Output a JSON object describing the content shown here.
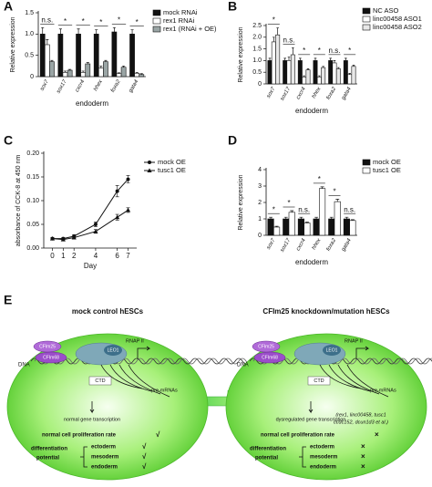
{
  "chart_data": [
    {
      "type": "bar",
      "panel": "A",
      "ylabel": "Relative expression",
      "xlabel": "endoderm",
      "categories": [
        "sox7",
        "sox17",
        "cxcr4",
        "hhex",
        "foxa2",
        "gata4"
      ],
      "series": [
        {
          "name": "mock RNAi",
          "color": "#111111",
          "values": [
            1.0,
            1.0,
            1.0,
            1.0,
            1.05,
            1.0
          ],
          "errors": [
            0.15,
            0.12,
            0.12,
            0.1,
            0.1,
            0.1
          ]
        },
        {
          "name": "rex1 RNAi",
          "color": "#ffffff",
          "values": [
            0.75,
            0.1,
            0.1,
            0.2,
            0.07,
            0.08
          ],
          "errors": [
            0.12,
            0.03,
            0.03,
            0.05,
            0.02,
            0.02
          ]
        },
        {
          "name": "rex1 (RNAi + OE)",
          "color": "#9aa5a5",
          "values": [
            0.35,
            0.15,
            0.3,
            0.35,
            0.22,
            0.05
          ],
          "errors": [
            0.03,
            0.02,
            0.03,
            0.03,
            0.03,
            0.02
          ]
        }
      ],
      "annotations": [
        "n.s.",
        "*",
        "*",
        "*",
        "*",
        "*"
      ],
      "ylim": [
        0,
        1.5
      ],
      "yticks": [
        0,
        0.5,
        {
          "value": 1,
          "label": "1.0"
        },
        1.5
      ]
    },
    {
      "type": "bar",
      "panel": "B",
      "ylabel": "Relative expression",
      "xlabel": "endoderm",
      "categories": [
        "sox7",
        "sox17",
        "cxcr4",
        "hhex",
        "foxa2",
        "gata4"
      ],
      "series": [
        {
          "name": "NC ASO",
          "color": "#111111",
          "values": [
            1.0,
            1.0,
            1.0,
            1.0,
            1.0,
            1.0
          ],
          "errors": [
            0.1,
            0.1,
            0.1,
            0.1,
            0.1,
            0.1
          ]
        },
        {
          "name": "linc00458 ASO1",
          "color": "#ffffff",
          "values": [
            1.8,
            1.0,
            0.3,
            0.3,
            0.9,
            0.4
          ],
          "errors": [
            0.2,
            0.15,
            0.05,
            0.05,
            0.1,
            0.05
          ]
        },
        {
          "name": "linc00458 ASO2",
          "color": "#e8e8e8",
          "values": [
            2.1,
            1.25,
            0.6,
            0.7,
            0.65,
            0.75
          ],
          "errors": [
            0.3,
            0.3,
            0.05,
            0.05,
            0.05,
            0.05
          ]
        }
      ],
      "annotations": [
        "*",
        "n.s.",
        "*",
        "*",
        "n.s.",
        "*"
      ],
      "ylim": [
        0,
        2.5
      ],
      "yticks": [
        0,
        0.5,
        {
          "value": 1,
          "label": "1.0"
        },
        1.5,
        {
          "value": 2,
          "label": "2.0"
        },
        2.5
      ]
    },
    {
      "type": "line",
      "panel": "C",
      "ylabel": "absorbance of CCK-8 at 450 nm",
      "xlabel": "Day",
      "x": [
        0,
        1,
        2,
        4,
        6,
        7
      ],
      "series": [
        {
          "name": "mock OE",
          "color": "#111111",
          "marker": "circle",
          "values": [
            0.02,
            0.02,
            0.025,
            0.05,
            0.12,
            0.145
          ],
          "errors": [
            0.002,
            0.002,
            0.003,
            0.005,
            0.012,
            0.008
          ]
        },
        {
          "name": "tusc1 OE",
          "color": "#111111",
          "marker": "triangle",
          "values": [
            0.02,
            0.018,
            0.022,
            0.035,
            0.065,
            0.08
          ],
          "errors": [
            0.002,
            0.002,
            0.002,
            0.004,
            0.006,
            0.005
          ]
        }
      ],
      "xlim": [
        -0.8,
        7.8
      ],
      "xticks": [
        0,
        1,
        2,
        4,
        6,
        7
      ],
      "ylim": [
        0,
        0.2
      ],
      "yticks": [
        {
          "value": 0,
          "label": "0.00"
        },
        0.05,
        {
          "value": 0.1,
          "label": "0.10"
        },
        0.15,
        {
          "value": 0.2,
          "label": "0.20"
        }
      ]
    },
    {
      "type": "bar",
      "panel": "D",
      "ylabel": "Relative expression",
      "xlabel": "endoderm",
      "categories": [
        "sox7",
        "sox17",
        "cxcr4",
        "hhex",
        "foxa2",
        "gata4"
      ],
      "series": [
        {
          "name": "mock OE",
          "color": "#111111",
          "values": [
            1.0,
            1.0,
            1.0,
            1.0,
            1.0,
            1.0
          ],
          "errors": [
            0.1,
            0.1,
            0.1,
            0.1,
            0.1,
            0.1
          ]
        },
        {
          "name": "tusc1 OE",
          "color": "#ffffff",
          "values": [
            0.5,
            1.4,
            0.75,
            2.85,
            2.05,
            0.9
          ],
          "errors": [
            0.05,
            0.1,
            0.05,
            0.1,
            0.15,
            0.05
          ]
        }
      ],
      "annotations": [
        "*",
        "*",
        "n.s.",
        "*",
        "*",
        "n.s."
      ],
      "ylim": [
        0,
        4
      ],
      "yticks": [
        0,
        1,
        2,
        3,
        4
      ]
    }
  ],
  "diagram": {
    "panel": "E",
    "left": {
      "title": "mock control hESCs",
      "cfim25": "CFIm25",
      "cfim68": "CFIm68",
      "leo1": "LEO1",
      "rnap": "RNAP II",
      "dna": "DNA",
      "ctd": "CTD",
      "premrna": "pre-mRNAs",
      "transcription": "normal gene transcription",
      "proliferation": "normal cell proliferation rate",
      "proliferation_mark": "√",
      "differentiation": "differentiation",
      "potential": "potential",
      "lineages": [
        "ectoderm",
        "mesoderm",
        "endoderm"
      ],
      "lineage_marks": [
        "√",
        "√",
        "√"
      ]
    },
    "right": {
      "title": "CFIm25 knockdown/mutation hESCs",
      "cfim25": "CFIm25",
      "cfim68": "CFIm68",
      "leo1": "LEO1",
      "rnap": "RNAP II",
      "dna": "DNA",
      "ctd": "CTD",
      "premrna": "pre-mRNAs",
      "genes": [
        "(rex1, linc00458, tusc1",
        "ccdc152, dcun1d3 et al.)"
      ],
      "transcription": "dysregulated gene transcription",
      "proliferation": "normal cell proliferation rate",
      "proliferation_mark": "×",
      "differentiation": "differentiation",
      "potential": "potential",
      "lineages": [
        "ectoderm",
        "mesoderm",
        "endoderm"
      ],
      "lineage_marks": [
        "×",
        "×",
        "×"
      ]
    }
  }
}
